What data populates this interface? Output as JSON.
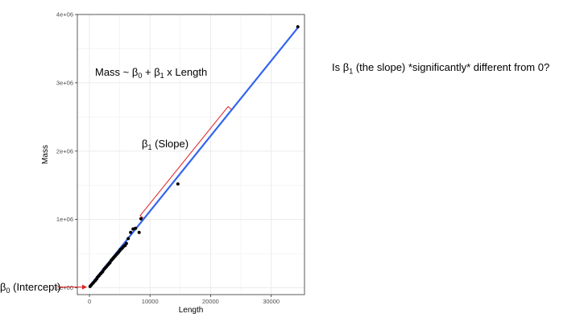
{
  "question": {
    "prefix": "Is β",
    "sub": "1",
    "suffix": " (the slope) *significantly* different from 0?"
  },
  "annotations": {
    "formula": {
      "t1": "Mass ~ β",
      "s1": "0",
      "t2": " + β",
      "s2": "1",
      "t3": " x Length"
    },
    "slope": {
      "t1": "β",
      "s1": "1",
      "t2": " (Slope)"
    },
    "intercept": {
      "t1": "β",
      "s1": "0",
      "t2": " (Intercept)"
    }
  },
  "colors": {
    "fit_line": "#3366ee",
    "annotation": "#e02020",
    "points": "#000000",
    "grid": "#ebebeb",
    "panel_border": "#333333"
  },
  "chart_data": {
    "type": "scatter",
    "xlabel": "Length",
    "ylabel": "Mass",
    "xlim": [
      -2000,
      35500
    ],
    "ylim": [
      -100000,
      4000000
    ],
    "x_ticks": [
      0,
      10000,
      20000,
      30000
    ],
    "x_tick_labels": [
      "0",
      "10000",
      "20000",
      "30000"
    ],
    "y_ticks": [
      0,
      1000000,
      2000000,
      3000000,
      4000000
    ],
    "y_tick_labels": [
      "0e+00",
      "1e+06",
      "2e+06",
      "3e+06",
      "4e+06"
    ],
    "grid": true,
    "fit_line": {
      "intercept": 22000,
      "slope": 110,
      "x_range": [
        0,
        34400
      ]
    },
    "points": [
      [
        34400,
        3820000
      ],
      [
        14600,
        1520000
      ],
      [
        8500,
        1010000
      ],
      [
        8200,
        810000
      ],
      [
        7600,
        870000
      ],
      [
        7200,
        860000
      ],
      [
        6800,
        810000
      ],
      [
        6400,
        720000
      ],
      [
        6100,
        650000
      ],
      [
        5900,
        620000
      ],
      [
        5700,
        610000
      ],
      [
        5500,
        590000
      ],
      [
        5300,
        570000
      ],
      [
        5100,
        560000
      ],
      [
        5000,
        540000
      ],
      [
        4800,
        520000
      ],
      [
        4600,
        500000
      ],
      [
        4500,
        490000
      ],
      [
        4300,
        470000
      ],
      [
        4200,
        460000
      ],
      [
        4000,
        440000
      ],
      [
        3900,
        430000
      ],
      [
        3700,
        410000
      ],
      [
        3600,
        400000
      ],
      [
        3400,
        370000
      ],
      [
        3300,
        360000
      ],
      [
        3100,
        340000
      ],
      [
        3000,
        330000
      ],
      [
        2800,
        310000
      ],
      [
        2700,
        300000
      ],
      [
        2500,
        280000
      ],
      [
        2400,
        270000
      ],
      [
        2200,
        240000
      ],
      [
        2100,
        230000
      ],
      [
        1900,
        210000
      ],
      [
        1800,
        200000
      ],
      [
        1600,
        180000
      ],
      [
        1500,
        170000
      ],
      [
        1300,
        150000
      ],
      [
        1200,
        130000
      ],
      [
        1000,
        110000
      ],
      [
        900,
        100000
      ],
      [
        700,
        80000
      ],
      [
        500,
        60000
      ],
      [
        300,
        40000
      ],
      [
        100,
        20000
      ]
    ]
  }
}
